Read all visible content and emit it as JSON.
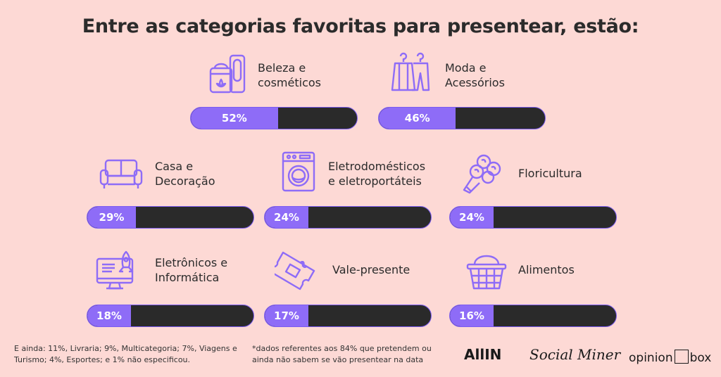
{
  "title": "Entre as categorias favoritas para presentear, estão:",
  "colors": {
    "background": "#FDD9D5",
    "bar_fill": "#8E6CF7",
    "bar_track": "#2a2a2a",
    "icon": "#8E6CF7"
  },
  "chart_data": {
    "type": "bar",
    "categories": [
      "Beleza e cosméticos",
      "Moda e Acessórios",
      "Casa e Decoração",
      "Eletrodomésticos e eletroportáteis",
      "Floricultura",
      "Eletrônicos e Informática",
      "Vale-presente",
      "Alimentos"
    ],
    "values": [
      52,
      46,
      29,
      24,
      24,
      18,
      17,
      16
    ],
    "value_labels": [
      "52%",
      "46%",
      "29%",
      "24%",
      "24%",
      "18%",
      "17%",
      "16%"
    ],
    "label_lines": [
      "Beleza e\ncosméticos",
      "Moda e\nAcessórios",
      "Casa e\nDecoração",
      "Eletrodomésticos\ne eletroportáteis",
      "Floricultura",
      "Eletrônicos e\nInformática",
      "Vale-presente",
      "Alimentos"
    ],
    "icons": [
      "cosmetics-icon",
      "clothes-hanger-icon",
      "sofa-icon",
      "washing-machine-icon",
      "flower-bouquet-icon",
      "computer-icon",
      "gift-voucher-icon",
      "basket-icon"
    ],
    "ylim": [
      0,
      100
    ]
  },
  "footnotes": {
    "left": "E ainda: 11%, Livraria; 9%, Multicategoria; 7%, Viagens e\nTurismo; 4%, Esportes; e 1% não especificou.",
    "right": "*dados referentes aos 84% que pretendem ou\nainda não sabem se vão presentear na data"
  },
  "logos": {
    "allin": "AllIN",
    "socialminer": "Social Miner",
    "opinionbox_left": "opinion",
    "opinionbox_right": "box"
  }
}
